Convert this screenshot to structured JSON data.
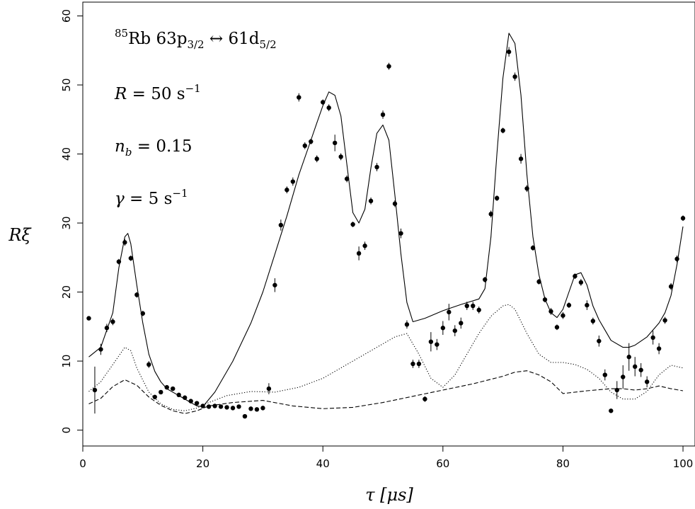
{
  "chart_data": {
    "type": "scatter",
    "xlabel": "τ [μs]",
    "ylabel": "Rξ",
    "xlim": [
      0,
      102
    ],
    "ylim": [
      -2.3,
      62
    ],
    "xticks": [
      0,
      20,
      40,
      60,
      80,
      100
    ],
    "yticks": [
      0,
      10,
      20,
      30,
      40,
      50,
      60
    ],
    "grid": false,
    "legend": "none",
    "annotations": {
      "line1": {
        "iso": "85",
        "text": "Rb 63p",
        "sub1": "3/2",
        "arrow": " ↔ 61d",
        "sub2": "5/2"
      },
      "line2": {
        "var": "R",
        "eq": " = 50 s",
        "sup": "−1"
      },
      "line3": {
        "var": "n",
        "sub": "b",
        "eq": " = 0.15"
      },
      "line4": {
        "var": "γ",
        "eq": " = 5 s",
        "sup": "−1"
      }
    },
    "series": [
      {
        "style": "points-with-errorbars",
        "points": [
          {
            "x": 1,
            "y": 16.2,
            "err": 0.3
          },
          {
            "x": 2,
            "y": 5.8,
            "err": 3.4
          },
          {
            "x": 3,
            "y": 11.7,
            "err": 0.8
          },
          {
            "x": 4,
            "y": 14.8,
            "err": 0.6
          },
          {
            "x": 5,
            "y": 15.7,
            "err": 0.5
          },
          {
            "x": 6,
            "y": 24.4,
            "err": 0.4
          },
          {
            "x": 7,
            "y": 27.2,
            "err": 0.5
          },
          {
            "x": 8,
            "y": 24.9,
            "err": 0.4
          },
          {
            "x": 9,
            "y": 19.6,
            "err": 0.4
          },
          {
            "x": 10,
            "y": 16.9,
            "err": 0.4
          },
          {
            "x": 11,
            "y": 9.5,
            "err": 0.5
          },
          {
            "x": 12,
            "y": 4.8,
            "err": 0.3
          },
          {
            "x": 13,
            "y": 5.5,
            "err": 0.3
          },
          {
            "x": 14,
            "y": 6.2,
            "err": 0.3
          },
          {
            "x": 15,
            "y": 6.0,
            "err": 0.3
          },
          {
            "x": 16,
            "y": 5.1,
            "err": 0.3
          },
          {
            "x": 17,
            "y": 4.7,
            "err": 0.2
          },
          {
            "x": 18,
            "y": 4.2,
            "err": 0.2
          },
          {
            "x": 19,
            "y": 3.9,
            "err": 0.2
          },
          {
            "x": 20,
            "y": 3.5,
            "err": 0.2
          },
          {
            "x": 21,
            "y": 3.4,
            "err": 0.2
          },
          {
            "x": 22,
            "y": 3.5,
            "err": 0.2
          },
          {
            "x": 23,
            "y": 3.4,
            "err": 0.2
          },
          {
            "x": 24,
            "y": 3.3,
            "err": 0.2
          },
          {
            "x": 25,
            "y": 3.2,
            "err": 0.2
          },
          {
            "x": 26,
            "y": 3.4,
            "err": 0.2
          },
          {
            "x": 27,
            "y": 2.0,
            "err": 0.3
          },
          {
            "x": 28,
            "y": 3.1,
            "err": 0.2
          },
          {
            "x": 29,
            "y": 3.0,
            "err": 0.2
          },
          {
            "x": 30,
            "y": 3.2,
            "err": 0.2
          },
          {
            "x": 31,
            "y": 6.0,
            "err": 0.8
          },
          {
            "x": 32,
            "y": 21.0,
            "err": 1.0
          },
          {
            "x": 33,
            "y": 29.7,
            "err": 0.8
          },
          {
            "x": 34,
            "y": 34.8,
            "err": 0.5
          },
          {
            "x": 35,
            "y": 36.0,
            "err": 0.6
          },
          {
            "x": 36,
            "y": 48.2,
            "err": 0.6
          },
          {
            "x": 37,
            "y": 41.2,
            "err": 0.5
          },
          {
            "x": 38,
            "y": 41.8,
            "err": 0.4
          },
          {
            "x": 39,
            "y": 39.3,
            "err": 0.5
          },
          {
            "x": 40,
            "y": 47.5,
            "err": 0.4
          },
          {
            "x": 41,
            "y": 46.7,
            "err": 0.5
          },
          {
            "x": 42,
            "y": 41.6,
            "err": 1.2
          },
          {
            "x": 43,
            "y": 39.6,
            "err": 0.5
          },
          {
            "x": 44,
            "y": 36.4,
            "err": 0.5
          },
          {
            "x": 45,
            "y": 29.8,
            "err": 0.4
          },
          {
            "x": 46,
            "y": 25.6,
            "err": 1.0
          },
          {
            "x": 47,
            "y": 26.7,
            "err": 0.6
          },
          {
            "x": 48,
            "y": 33.2,
            "err": 0.5
          },
          {
            "x": 49,
            "y": 38.1,
            "err": 0.6
          },
          {
            "x": 50,
            "y": 45.7,
            "err": 0.6
          },
          {
            "x": 51,
            "y": 52.7,
            "err": 0.5
          },
          {
            "x": 52,
            "y": 32.8,
            "err": 0.5
          },
          {
            "x": 53,
            "y": 28.5,
            "err": 0.7
          },
          {
            "x": 54,
            "y": 15.3,
            "err": 0.6
          },
          {
            "x": 55,
            "y": 9.6,
            "err": 0.6
          },
          {
            "x": 56,
            "y": 9.6,
            "err": 0.6
          },
          {
            "x": 57,
            "y": 4.5,
            "err": 0.4
          },
          {
            "x": 58,
            "y": 12.8,
            "err": 1.4
          },
          {
            "x": 59,
            "y": 12.4,
            "err": 0.8
          },
          {
            "x": 60,
            "y": 14.8,
            "err": 1.0
          },
          {
            "x": 61,
            "y": 17.1,
            "err": 1.2
          },
          {
            "x": 62,
            "y": 14.4,
            "err": 0.8
          },
          {
            "x": 63,
            "y": 15.5,
            "err": 0.8
          },
          {
            "x": 64,
            "y": 18.0,
            "err": 0.6
          },
          {
            "x": 65,
            "y": 18.0,
            "err": 0.6
          },
          {
            "x": 66,
            "y": 17.4,
            "err": 0.5
          },
          {
            "x": 67,
            "y": 21.8,
            "err": 0.4
          },
          {
            "x": 68,
            "y": 31.3,
            "err": 0.5
          },
          {
            "x": 69,
            "y": 33.6,
            "err": 0.4
          },
          {
            "x": 70,
            "y": 43.4,
            "err": 0.4
          },
          {
            "x": 71,
            "y": 54.8,
            "err": 0.7
          },
          {
            "x": 72,
            "y": 51.2,
            "err": 0.6
          },
          {
            "x": 73,
            "y": 39.3,
            "err": 0.7
          },
          {
            "x": 74,
            "y": 35.0,
            "err": 0.5
          },
          {
            "x": 75,
            "y": 26.4,
            "err": 0.4
          },
          {
            "x": 76,
            "y": 21.5,
            "err": 0.4
          },
          {
            "x": 77,
            "y": 18.9,
            "err": 0.4
          },
          {
            "x": 78,
            "y": 17.2,
            "err": 0.5
          },
          {
            "x": 79,
            "y": 14.9,
            "err": 0.4
          },
          {
            "x": 80,
            "y": 16.6,
            "err": 0.5
          },
          {
            "x": 81,
            "y": 18.1,
            "err": 0.4
          },
          {
            "x": 82,
            "y": 22.3,
            "err": 0.4
          },
          {
            "x": 83,
            "y": 21.4,
            "err": 0.5
          },
          {
            "x": 84,
            "y": 18.1,
            "err": 0.7
          },
          {
            "x": 85,
            "y": 15.8,
            "err": 0.5
          },
          {
            "x": 86,
            "y": 12.9,
            "err": 0.8
          },
          {
            "x": 87,
            "y": 8.0,
            "err": 0.8
          },
          {
            "x": 88,
            "y": 2.8,
            "err": 0.3
          },
          {
            "x": 89,
            "y": 5.8,
            "err": 1.3
          },
          {
            "x": 90,
            "y": 7.7,
            "err": 1.7
          },
          {
            "x": 91,
            "y": 10.6,
            "err": 2.0
          },
          {
            "x": 92,
            "y": 9.2,
            "err": 1.4
          },
          {
            "x": 93,
            "y": 8.7,
            "err": 1.0
          },
          {
            "x": 94,
            "y": 7.0,
            "err": 0.8
          },
          {
            "x": 95,
            "y": 13.4,
            "err": 1.0
          },
          {
            "x": 96,
            "y": 11.8,
            "err": 0.8
          },
          {
            "x": 97,
            "y": 15.9,
            "err": 0.5
          },
          {
            "x": 98,
            "y": 20.8,
            "err": 0.5
          },
          {
            "x": 99,
            "y": 24.8,
            "err": 0.5
          },
          {
            "x": 100,
            "y": 30.7,
            "err": 0.4
          }
        ]
      },
      {
        "style": "solid",
        "x": [
          1,
          3,
          5,
          6,
          7,
          7.5,
          8,
          9,
          10,
          11,
          12,
          13,
          14,
          16,
          18,
          19,
          20,
          22,
          25,
          28,
          30,
          32,
          34,
          36,
          38,
          39,
          40,
          41,
          42,
          43,
          44,
          45,
          46,
          47,
          48,
          49,
          50,
          51,
          52,
          53,
          54,
          55,
          57,
          60,
          63,
          66,
          67,
          68,
          69,
          70,
          71,
          72,
          73,
          74,
          75,
          76,
          77,
          78,
          79,
          80,
          81,
          82,
          83,
          84,
          85,
          86,
          87,
          88,
          90,
          91,
          92,
          94,
          96,
          97,
          98,
          99,
          100
        ],
        "y": [
          10.6,
          12.0,
          17.0,
          23.5,
          28.0,
          28.5,
          27.0,
          21.0,
          15.5,
          11.0,
          8.5,
          7.0,
          6.0,
          5.0,
          4.0,
          3.5,
          3.4,
          5.5,
          10.0,
          15.5,
          20.0,
          25.5,
          31.0,
          37.0,
          42.0,
          44.5,
          47.0,
          49.0,
          48.5,
          45.5,
          38.5,
          31.5,
          30.0,
          32.0,
          38.0,
          43.0,
          44.2,
          42.0,
          34.0,
          25.5,
          18.5,
          15.7,
          16.2,
          17.3,
          18.2,
          19.0,
          20.5,
          28.0,
          40.0,
          51.0,
          57.5,
          56.0,
          48.5,
          37.0,
          28.0,
          22.5,
          19.0,
          17.0,
          16.3,
          17.5,
          20.0,
          22.5,
          22.8,
          21.0,
          18.0,
          16.0,
          14.5,
          13.0,
          12.0,
          12.0,
          12.3,
          13.5,
          15.5,
          17.0,
          19.5,
          24.0,
          29.5
        ]
      },
      {
        "style": "dotted",
        "x": [
          1,
          3,
          5,
          7,
          8,
          9,
          11,
          13,
          15,
          17,
          19,
          21,
          24,
          28,
          32,
          36,
          40,
          44,
          48,
          52,
          54,
          56,
          58,
          60,
          62,
          64,
          66,
          68,
          70,
          71,
          72,
          74,
          76,
          78,
          80,
          82,
          84,
          86,
          88,
          90,
          92,
          94,
          96,
          98,
          100
        ],
        "y": [
          5.6,
          7.0,
          9.5,
          12.0,
          11.5,
          9.0,
          5.5,
          3.8,
          3.0,
          2.8,
          3.2,
          4.0,
          5.0,
          5.6,
          5.5,
          6.2,
          7.5,
          9.5,
          11.5,
          13.5,
          14.0,
          11.0,
          7.5,
          6.2,
          8.0,
          11.0,
          14.0,
          16.5,
          18.0,
          18.2,
          17.5,
          14.0,
          11.0,
          9.8,
          9.8,
          9.5,
          8.8,
          7.5,
          5.5,
          4.5,
          4.5,
          5.6,
          8.0,
          9.4,
          9.0
        ]
      },
      {
        "style": "dashed",
        "x": [
          1,
          3,
          5,
          7,
          9,
          11,
          13,
          15,
          17,
          19,
          21,
          25,
          30,
          35,
          40,
          45,
          50,
          55,
          60,
          65,
          70,
          72,
          74,
          76,
          78,
          80,
          84,
          88,
          90,
          92,
          94,
          96,
          98,
          100
        ],
        "y": [
          3.8,
          4.6,
          6.3,
          7.3,
          6.5,
          4.8,
          3.6,
          2.8,
          2.4,
          2.8,
          3.5,
          4.0,
          4.3,
          3.5,
          3.1,
          3.3,
          4.0,
          4.9,
          5.8,
          6.7,
          7.8,
          8.4,
          8.6,
          8.0,
          7.0,
          5.3,
          5.7,
          6.0,
          6.0,
          5.8,
          6.0,
          6.4,
          6.0,
          5.7
        ]
      }
    ]
  }
}
